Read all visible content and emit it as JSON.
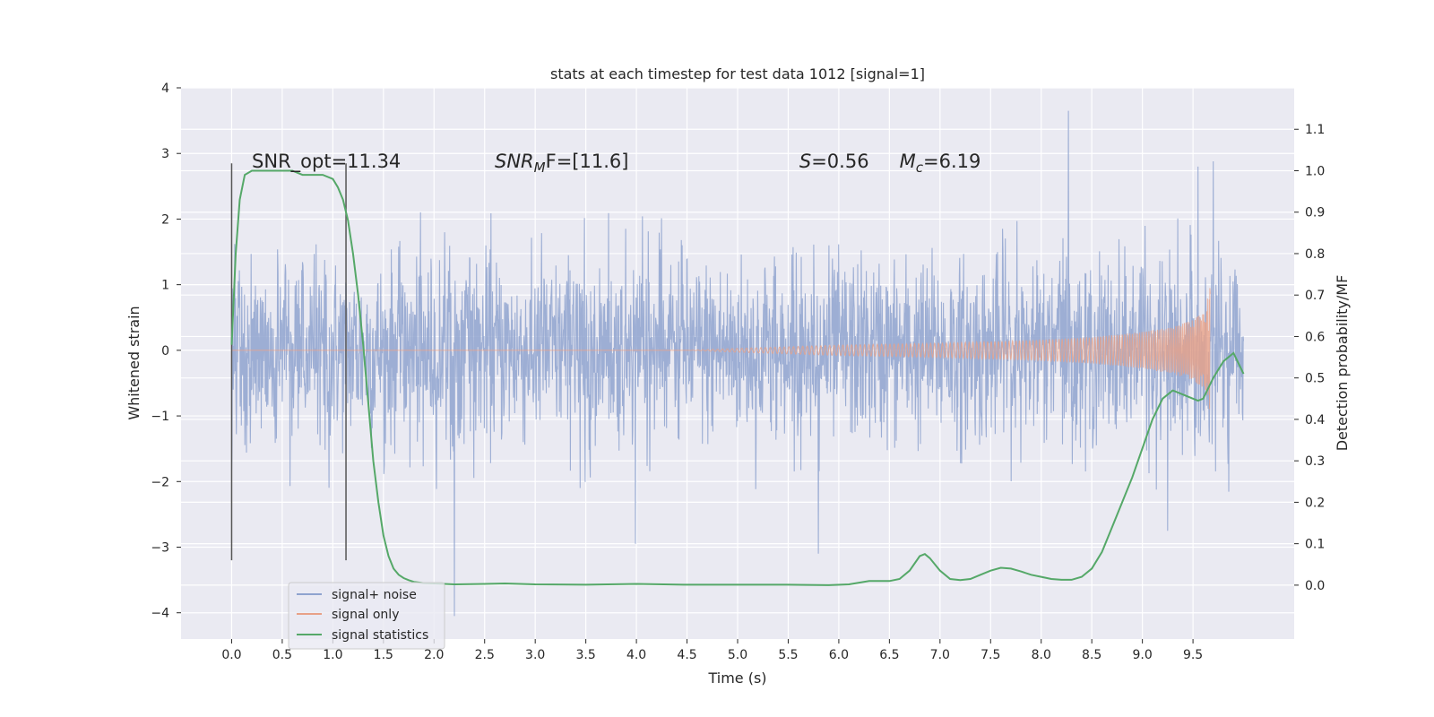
{
  "chart_data": {
    "type": "line",
    "title": "stats at each timestep for test data 1012 [signal=1]",
    "xlabel": "Time (s)",
    "ylabel": "Whitened strain",
    "y2label": "Detection probability/MF",
    "xlim": [
      -0.5,
      10.5
    ],
    "ylim": [
      -4.4,
      4.0
    ],
    "y2lim": [
      -0.13,
      1.2
    ],
    "xticks": [
      0.0,
      0.5,
      1.0,
      1.5,
      2.0,
      2.5,
      3.0,
      3.5,
      4.0,
      4.5,
      5.0,
      5.5,
      6.0,
      6.5,
      7.0,
      7.5,
      8.0,
      8.5,
      9.0,
      9.5
    ],
    "xtick_labels": [
      "0.0",
      "0.5",
      "1.0",
      "1.5",
      "2.0",
      "2.5",
      "3.0",
      "3.5",
      "4.0",
      "4.5",
      "5.0",
      "5.5",
      "6.0",
      "6.5",
      "7.0",
      "7.5",
      "8.0",
      "8.5",
      "9.0",
      "9.5"
    ],
    "yticks": [
      -4,
      -3,
      -2,
      -1,
      0,
      1,
      2,
      3,
      4
    ],
    "ytick_labels": [
      "−4",
      "−3",
      "−2",
      "−1",
      "0",
      "1",
      "2",
      "3",
      "4"
    ],
    "y2ticks": [
      0.0,
      0.1,
      0.2,
      0.3,
      0.4,
      0.5,
      0.6,
      0.7,
      0.8,
      0.9,
      1.0,
      1.1
    ],
    "y2tick_labels": [
      "0.0",
      "0.1",
      "0.2",
      "0.3",
      "0.4",
      "0.5",
      "0.6",
      "0.7",
      "0.8",
      "0.9",
      "1.0",
      "1.1"
    ],
    "grid": true,
    "legend_position": "bottom-left",
    "series": [
      {
        "name": "signal+ noise",
        "kind": "noise-trace",
        "color": "#8fa3cf",
        "x_range": [
          0.0,
          10.0
        ],
        "y_envelope": [
          -1.8,
          1.8
        ],
        "notable_peaks": [
          {
            "x": 8.27,
            "y": 3.65
          },
          {
            "x": 2.2,
            "y": -4.05
          },
          {
            "x": 9.7,
            "y": 2.88
          },
          {
            "x": 9.55,
            "y": 2.8
          },
          {
            "x": 5.8,
            "y": -3.1
          },
          {
            "x": 3.99,
            "y": -2.95
          },
          {
            "x": 9.25,
            "y": -2.75
          }
        ]
      },
      {
        "name": "signal only",
        "kind": "chirp",
        "color": "#e8a187",
        "x_range": [
          0.0,
          9.67
        ],
        "amplitude_points": [
          [
            0.0,
            0.0
          ],
          [
            4.5,
            0.0
          ],
          [
            5.0,
            0.03
          ],
          [
            6.0,
            0.08
          ],
          [
            7.0,
            0.11
          ],
          [
            8.0,
            0.16
          ],
          [
            8.5,
            0.2
          ],
          [
            9.0,
            0.28
          ],
          [
            9.3,
            0.36
          ],
          [
            9.5,
            0.46
          ],
          [
            9.62,
            0.6
          ],
          [
            9.67,
            1.0
          ]
        ]
      },
      {
        "name": "signal statistics",
        "kind": "line",
        "axis": "right",
        "color": "#55a868",
        "x": [
          0.0,
          0.04,
          0.08,
          0.13,
          0.2,
          0.3,
          0.4,
          0.5,
          0.6,
          0.7,
          0.8,
          0.9,
          1.0,
          1.05,
          1.1,
          1.15,
          1.2,
          1.25,
          1.3,
          1.35,
          1.4,
          1.45,
          1.5,
          1.55,
          1.6,
          1.65,
          1.7,
          1.75,
          1.8,
          1.9,
          2.0,
          2.2,
          2.5,
          2.7,
          3.0,
          3.5,
          4.0,
          4.5,
          5.0,
          5.5,
          5.9,
          6.1,
          6.3,
          6.5,
          6.6,
          6.7,
          6.8,
          6.85,
          6.9,
          7.0,
          7.1,
          7.2,
          7.3,
          7.4,
          7.5,
          7.6,
          7.7,
          7.8,
          7.9,
          8.0,
          8.1,
          8.2,
          8.3,
          8.4,
          8.5,
          8.6,
          8.7,
          8.8,
          8.9,
          9.0,
          9.1,
          9.2,
          9.3,
          9.4,
          9.5,
          9.55,
          9.6,
          9.7,
          9.8,
          9.9,
          10.0
        ],
        "y": [
          0.58,
          0.8,
          0.93,
          0.99,
          1.0,
          1.0,
          1.0,
          1.0,
          1.0,
          0.99,
          0.99,
          0.99,
          0.98,
          0.96,
          0.93,
          0.88,
          0.8,
          0.7,
          0.58,
          0.44,
          0.3,
          0.2,
          0.12,
          0.07,
          0.04,
          0.025,
          0.017,
          0.012,
          0.008,
          0.005,
          0.004,
          0.002,
          0.003,
          0.004,
          0.002,
          0.001,
          0.003,
          0.001,
          0.001,
          0.001,
          0.0,
          0.002,
          0.01,
          0.01,
          0.015,
          0.035,
          0.07,
          0.075,
          0.065,
          0.035,
          0.015,
          0.012,
          0.015,
          0.025,
          0.035,
          0.042,
          0.04,
          0.033,
          0.025,
          0.02,
          0.015,
          0.013,
          0.013,
          0.02,
          0.04,
          0.08,
          0.14,
          0.2,
          0.26,
          0.33,
          0.4,
          0.45,
          0.47,
          0.46,
          0.45,
          0.445,
          0.45,
          0.5,
          0.54,
          0.56,
          0.51
        ]
      }
    ],
    "vertical_lines": [
      {
        "x": 0.0,
        "y_range": [
          -3.2,
          2.85
        ]
      },
      {
        "x": 1.13,
        "y_range": [
          -3.2,
          2.85
        ]
      }
    ],
    "annotations": [
      {
        "text": "SNR_opt=11.34",
        "x": 0.2,
        "y": 2.85
      },
      {
        "text": "SNR",
        "sub": "M",
        "tail": "F=[11.6]",
        "italic": true,
        "x": 2.6,
        "y": 2.85
      },
      {
        "text": "S",
        "tail": "=0.56",
        "italic": true,
        "x": 5.61,
        "y": 2.85
      },
      {
        "text": "M",
        "sub": "c",
        "tail": "=6.19",
        "italic": true,
        "x": 6.6,
        "y": 2.85
      }
    ]
  }
}
